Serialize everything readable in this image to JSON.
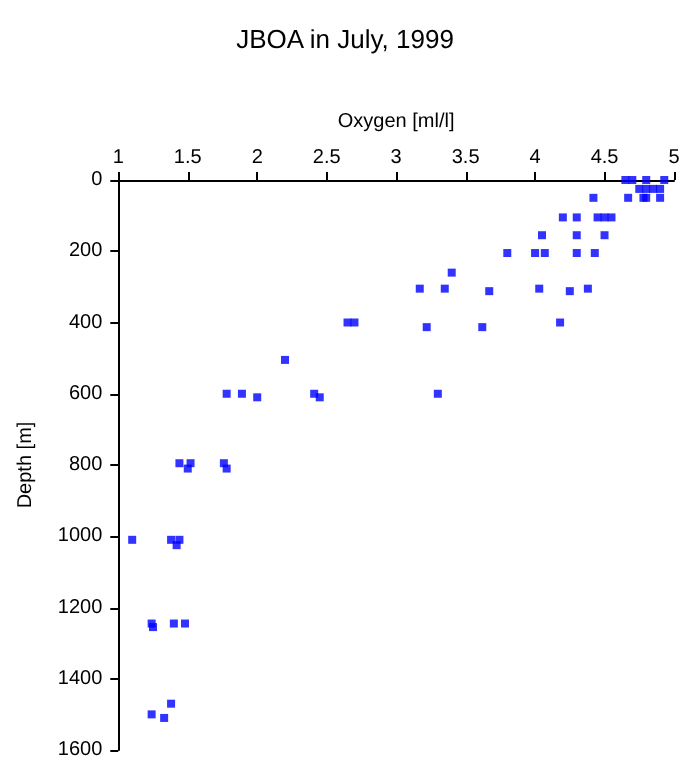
{
  "chart_data": {
    "type": "scatter",
    "title": "JBOA in July, 1999",
    "xlabel": "Oxygen [ml/l]",
    "ylabel": "Depth [m]",
    "xlim": [
      1,
      5
    ],
    "xticks": [
      1,
      1.5,
      2,
      2.5,
      3,
      3.5,
      4,
      4.5,
      5
    ],
    "ylim": [
      1600,
      0
    ],
    "yticks": [
      0,
      200,
      400,
      600,
      800,
      1000,
      1200,
      1400,
      1600
    ],
    "grid": false,
    "marker": "square",
    "series": [
      {
        "color": "#0000ff",
        "x": [
          4.65,
          4.7,
          4.8,
          4.93,
          4.75,
          4.8,
          4.85,
          4.9,
          4.67,
          4.78,
          4.8,
          4.9,
          4.42,
          4.2,
          4.3,
          4.45,
          4.5,
          4.55,
          4.05,
          4.3,
          4.5,
          3.8,
          4.0,
          4.07,
          4.3,
          4.43,
          3.4,
          3.17,
          3.35,
          4.03,
          4.38,
          3.67,
          4.25,
          2.65,
          2.7,
          4.18,
          3.22,
          3.62,
          2.2,
          1.78,
          1.89,
          2.41,
          3.3,
          2.0,
          2.45,
          1.44,
          1.52,
          1.76,
          1.5,
          1.78,
          1.1,
          1.38,
          1.44,
          1.42,
          1.24,
          1.4,
          1.48,
          1.25,
          1.38,
          1.24,
          1.33
        ],
        "values": [
          0,
          0,
          0,
          0,
          25,
          25,
          25,
          25,
          50,
          50,
          50,
          50,
          50,
          105,
          105,
          105,
          105,
          105,
          155,
          155,
          155,
          205,
          205,
          205,
          205,
          205,
          260,
          305,
          305,
          305,
          305,
          312,
          312,
          400,
          400,
          400,
          413,
          413,
          505,
          600,
          600,
          600,
          600,
          610,
          610,
          795,
          795,
          795,
          810,
          810,
          1010,
          1010,
          1010,
          1025,
          1245,
          1245,
          1245,
          1255,
          1470,
          1500,
          1510
        ]
      }
    ]
  }
}
